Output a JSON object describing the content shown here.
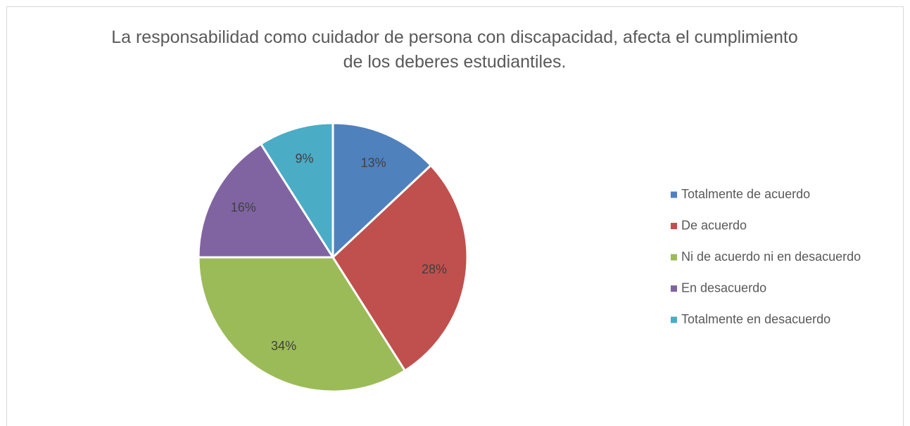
{
  "chart_data": {
    "type": "pie",
    "title": "La responsabilidad como cuidador de persona con discapacidad, afecta el cumplimiento de los deberes estudiantiles.",
    "categories": [
      "Totalmente de acuerdo",
      "De acuerdo",
      "Ni de acuerdo ni en desacuerdo",
      "En desacuerdo",
      "Totalmente en desacuerdo"
    ],
    "values": [
      13,
      28,
      34,
      16,
      9
    ],
    "value_labels": [
      "13%",
      "28%",
      "34%",
      "16%",
      "9%"
    ],
    "colors": [
      "#4f81bd",
      "#c0504d",
      "#9bbb59",
      "#8064a2",
      "#4bacc6"
    ],
    "legend": "right"
  }
}
